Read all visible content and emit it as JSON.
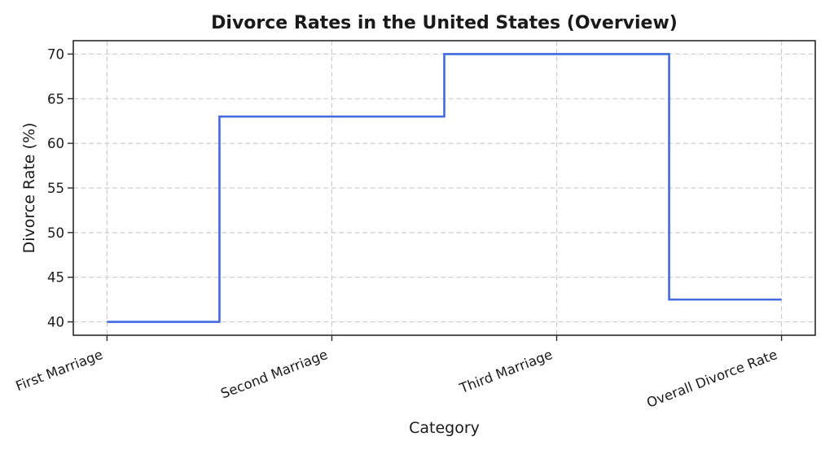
{
  "chart_data": {
    "type": "line",
    "step_mode": "mid",
    "title": "Divorce Rates in the United States (Overview)",
    "xlabel": "Category",
    "ylabel": "Divorce Rate (%)",
    "categories": [
      "First Marriage",
      "Second Marriage",
      "Third Marriage",
      "Overall Divorce Rate"
    ],
    "values": [
      40,
      63,
      70,
      42.5
    ],
    "yticks": [
      40,
      45,
      50,
      55,
      60,
      65,
      70
    ],
    "ylim": [
      38.5,
      71.5
    ],
    "xlim": [
      -0.15,
      3.15
    ],
    "grid": true,
    "grid_style": "dashed",
    "legend": "none",
    "x_tick_rotation_deg": 21,
    "colors": {
      "line": "#4169e1",
      "grid": "#cdcdcd",
      "spine": "#2a2a2a",
      "text": "#1a1a1a",
      "background": "#ffffff"
    }
  }
}
